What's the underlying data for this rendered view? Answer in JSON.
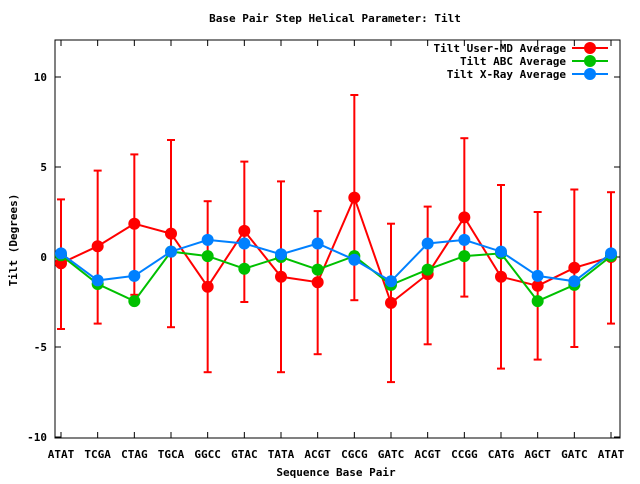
{
  "chart_data": {
    "type": "line",
    "title": "Base Pair Step Helical Parameter: Tilt",
    "xlabel": "Sequence Base Pair",
    "ylabel": "Tilt (Degrees)",
    "ylim": [
      -10,
      12
    ],
    "yticks": [
      -10,
      -5,
      0,
      5,
      10
    ],
    "grid": false,
    "legend_position": "top-right",
    "categories": [
      "ATAT",
      "TCGA",
      "CTAG",
      "TGCA",
      "GGCC",
      "GTAC",
      "TATA",
      "ACGT",
      "CGCG",
      "GATC",
      "ACGT",
      "CCGG",
      "CATG",
      "AGCT",
      "GATC",
      "ATAT"
    ],
    "series": [
      {
        "name": "Tilt User-MD Average",
        "color": "#ff0000",
        "values": [
          -0.35,
          0.6,
          1.85,
          1.3,
          -1.65,
          1.45,
          -1.1,
          -1.4,
          3.3,
          -2.55,
          -0.95,
          2.2,
          -1.1,
          -1.6,
          -0.6,
          0.0
        ],
        "error_upper": [
          3.2,
          4.8,
          5.7,
          6.5,
          3.1,
          5.3,
          4.2,
          2.55,
          9.0,
          1.85,
          2.8,
          6.6,
          4.0,
          2.5,
          3.75,
          3.6
        ],
        "error_lower": [
          -4.0,
          -3.7,
          -2.1,
          -3.9,
          -6.4,
          -2.5,
          -6.4,
          -5.4,
          -2.4,
          -6.95,
          -4.85,
          -2.2,
          -6.2,
          -5.7,
          -5.0,
          -3.7
        ]
      },
      {
        "name": "Tilt ABC Average",
        "color": "#00c000",
        "values": [
          0.1,
          -1.5,
          -2.45,
          0.3,
          0.05,
          -0.65,
          0.0,
          -0.7,
          0.05,
          -1.55,
          -0.7,
          0.05,
          0.2,
          -2.45,
          -1.55,
          0.05
        ]
      },
      {
        "name": "Tilt X-Ray Average",
        "color": "#0080ff",
        "values": [
          0.2,
          -1.3,
          -1.05,
          0.3,
          0.95,
          0.75,
          0.15,
          0.75,
          -0.15,
          -1.35,
          0.75,
          0.95,
          0.3,
          -1.05,
          -1.35,
          0.2
        ]
      }
    ]
  }
}
